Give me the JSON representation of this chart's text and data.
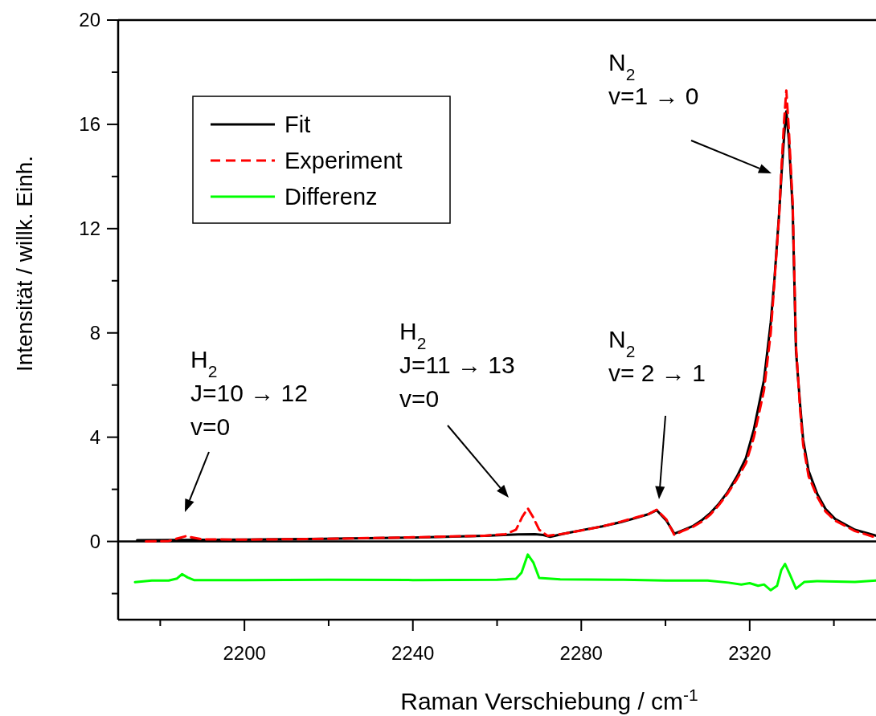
{
  "chart_data": {
    "type": "line",
    "xlabel": "Raman Verschiebung / cm$^{-1}$",
    "ylabel": "Intensität / willk. Einh.",
    "xlim": [
      2170,
      2350
    ],
    "xticks": [
      {
        "value": 2180,
        "label": null
      },
      2200,
      {
        "value": 2220,
        "label": null
      },
      2240,
      {
        "value": 2260,
        "label": null
      },
      2280,
      {
        "value": 2300,
        "label": null
      },
      2320,
      {
        "value": 2340,
        "label": null
      }
    ],
    "ylim": [
      -3,
      20
    ],
    "yticks": [
      {
        "value": -2,
        "label": null
      },
      0,
      {
        "value": 2,
        "label": null
      },
      4,
      {
        "value": 6,
        "label": null
      },
      8,
      {
        "value": 10,
        "label": null
      },
      12,
      {
        "value": 14,
        "label": null
      },
      16,
      {
        "value": 18,
        "label": null
      },
      20
    ],
    "legend": "top left",
    "grid": false,
    "ref_lines": [
      {
        "axis": "y",
        "value": 0,
        "color": "#000000"
      }
    ],
    "series": [
      {
        "name": "Fit",
        "color": "#000000",
        "line_style": "solid",
        "x": [
          2174.5,
          2200,
          2219,
          2240,
          2257,
          2265,
          2269,
          2271,
          2272.6,
          2276,
          2281,
          2285,
          2289.4,
          2293.6,
          2296,
          2297.9,
          2300.2,
          2302.1,
          2304,
          2306.4,
          2308.5,
          2310.6,
          2312.7,
          2314.8,
          2317,
          2319.1,
          2321,
          2323.4,
          2325,
          2325.9,
          2327,
          2327.6,
          2328.2,
          2328.7,
          2329.3,
          2330.2,
          2331,
          2332,
          2332.7,
          2334,
          2336.1,
          2338,
          2340.3,
          2345,
          2350
        ],
        "values": [
          0.05,
          0.07,
          0.1,
          0.15,
          0.22,
          0.27,
          0.28,
          0.25,
          0.18,
          0.3,
          0.46,
          0.58,
          0.74,
          0.93,
          1.05,
          1.2,
          0.8,
          0.3,
          0.42,
          0.58,
          0.8,
          1.08,
          1.45,
          1.9,
          2.5,
          3.2,
          4.3,
          6.2,
          8.4,
          10.1,
          12.6,
          14.2,
          15.6,
          16.5,
          15.4,
          12.8,
          7.3,
          5.2,
          3.9,
          2.7,
          1.8,
          1.25,
          0.86,
          0.45,
          0.22
        ]
      },
      {
        "name": "Experiment",
        "color": "#ff0000",
        "line_style": "dashed",
        "x": [
          2176.6,
          2182,
          2186,
          2190,
          2200,
          2219,
          2240,
          2257,
          2262,
          2264.5,
          2266,
          2267.3,
          2268.5,
          2270,
          2272,
          2276,
          2281,
          2285,
          2289.4,
          2293.6,
          2296,
          2297.9,
          2300.2,
          2302.1,
          2304,
          2306.4,
          2308.5,
          2310.6,
          2312.7,
          2314.8,
          2317,
          2319.1,
          2321,
          2323.4,
          2325,
          2325.9,
          2327,
          2327.6,
          2328.2,
          2328.7,
          2329.3,
          2330.2,
          2331,
          2332,
          2332.7,
          2334,
          2336.1,
          2338,
          2340.3,
          2345,
          2350
        ],
        "values": [
          0.0,
          0.02,
          0.2,
          0.08,
          0.07,
          0.1,
          0.16,
          0.22,
          0.28,
          0.45,
          0.95,
          1.27,
          0.95,
          0.45,
          0.22,
          0.3,
          0.45,
          0.58,
          0.76,
          0.95,
          1.05,
          1.22,
          0.85,
          0.25,
          0.4,
          0.55,
          0.75,
          1.02,
          1.4,
          1.85,
          2.4,
          3.0,
          4.0,
          5.8,
          8.0,
          10.0,
          12.5,
          14.5,
          16.2,
          17.3,
          15.8,
          13.0,
          7.5,
          5.0,
          3.7,
          2.5,
          1.7,
          1.15,
          0.8,
          0.4,
          0.15
        ]
      },
      {
        "name": "Differenz",
        "color": "#00ff00",
        "line_style": "solid",
        "x": [
          2174,
          2178,
          2182,
          2184,
          2185.2,
          2186.5,
          2188,
          2200,
          2220,
          2240,
          2260,
          2264.5,
          2265.8,
          2267.3,
          2268.6,
          2270,
          2275,
          2290,
          2300,
          2310,
          2315,
          2318,
          2320,
          2322,
          2323.4,
          2325,
          2326.5,
          2327.5,
          2328.4,
          2329.5,
          2331,
          2333,
          2336,
          2345,
          2350
        ],
        "values": [
          -1.56,
          -1.5,
          -1.5,
          -1.42,
          -1.25,
          -1.38,
          -1.48,
          -1.48,
          -1.47,
          -1.48,
          -1.47,
          -1.43,
          -1.2,
          -0.5,
          -0.8,
          -1.4,
          -1.45,
          -1.47,
          -1.5,
          -1.5,
          -1.58,
          -1.65,
          -1.6,
          -1.7,
          -1.65,
          -1.87,
          -1.7,
          -1.1,
          -0.86,
          -1.25,
          -1.81,
          -1.55,
          -1.52,
          -1.55,
          -1.5
        ]
      }
    ],
    "annotations": [
      "H$_{2}$\nJ=10 → 12\nv=0",
      "H$_{2}$\nJ=11 → 13\nv=0",
      "N$_{2}$\nv= 2 → 1",
      "N$_{2}$\nv=1 → 0"
    ]
  }
}
